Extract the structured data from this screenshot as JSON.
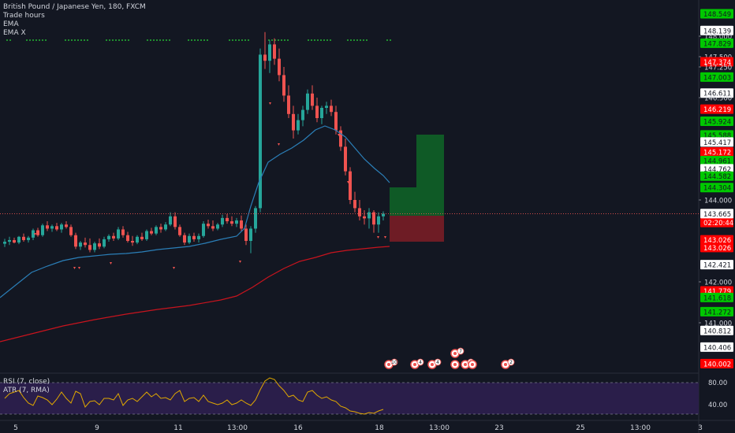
{
  "symbol": {
    "title": "British Pound / Japanese Yen, 180, FXCM",
    "studies": [
      "Trade hours",
      "EMA",
      "EMA X"
    ]
  },
  "indicators": {
    "rsi_label": "RSI (7, close)",
    "atr_label": "ATR (7, RMA)",
    "rsi_levels": [
      "80.00",
      "40.00"
    ]
  },
  "price_axis": {
    "ticks": [
      {
        "label": "148.549",
        "p": 148.549,
        "bg": "#00c800",
        "fg": "#131722"
      },
      {
        "label": "148.139",
        "p": 148.139,
        "bg": "#ffffff",
        "fg": "#131722"
      },
      {
        "label": "148.000",
        "p": 148.0,
        "bg": null,
        "fg": "#d1d4dc"
      },
      {
        "label": "147.829",
        "p": 147.829,
        "bg": "#00c800",
        "fg": "#131722"
      },
      {
        "label": "147.500",
        "p": 147.5,
        "bg": null,
        "fg": "#d1d4dc"
      },
      {
        "label": "147.374",
        "p": 147.374,
        "bg": "#ff0000",
        "fg": "#ffffff"
      },
      {
        "label": "147.250",
        "p": 147.25,
        "bg": null,
        "fg": "#d1d4dc"
      },
      {
        "label": "147.003",
        "p": 147.003,
        "bg": "#00c800",
        "fg": "#131722"
      },
      {
        "label": "146.611",
        "p": 146.611,
        "bg": "#ffffff",
        "fg": "#131722"
      },
      {
        "label": "146.500",
        "p": 146.5,
        "bg": null,
        "fg": "#d1d4dc"
      },
      {
        "label": "146.219",
        "p": 146.219,
        "bg": "#ff0000",
        "fg": "#ffffff"
      },
      {
        "label": "145.924",
        "p": 145.924,
        "bg": "#00c800",
        "fg": "#131722"
      },
      {
        "label": "145.588",
        "p": 145.588,
        "bg": "#00c800",
        "fg": "#131722"
      },
      {
        "label": "145.417",
        "p": 145.417,
        "bg": "#ffffff",
        "fg": "#131722"
      },
      {
        "label": "145.172",
        "p": 145.172,
        "bg": "#ff0000",
        "fg": "#ffffff"
      },
      {
        "label": "144.961",
        "p": 144.961,
        "bg": "#00c800",
        "fg": "#131722"
      },
      {
        "label": "144.762",
        "p": 144.762,
        "bg": "#ffffff",
        "fg": "#131722"
      },
      {
        "label": "144.582",
        "p": 144.582,
        "bg": "#00c800",
        "fg": "#131722"
      },
      {
        "label": "144.304",
        "p": 144.304,
        "bg": "#00c800",
        "fg": "#131722"
      },
      {
        "label": "144.000",
        "p": 144.0,
        "bg": null,
        "fg": "#d1d4dc"
      },
      {
        "label": "143.665",
        "p": 143.665,
        "bg": "#ffffff",
        "fg": "#131722"
      },
      {
        "label": "143.620",
        "p": 143.62,
        "bg": "#ff0000",
        "fg": "#ffffff"
      },
      {
        "label": "02:20:44",
        "p": 143.45,
        "bg": "#ff0000",
        "fg": "#ffffff"
      },
      {
        "label": "143.026",
        "p": 143.026,
        "bg": "#ff0000",
        "fg": "#ffffff"
      },
      {
        "label": "143.026",
        "p": 142.84,
        "bg": "#ff0000",
        "fg": "#ffffff"
      },
      {
        "label": "142.421",
        "p": 142.421,
        "bg": "#ffffff",
        "fg": "#131722"
      },
      {
        "label": "142.000",
        "p": 142.0,
        "bg": null,
        "fg": "#d1d4dc"
      },
      {
        "label": "141.779",
        "p": 141.779,
        "bg": "#ff0000",
        "fg": "#ffffff"
      },
      {
        "label": "141.618",
        "p": 141.618,
        "bg": "#00c800",
        "fg": "#131722"
      },
      {
        "label": "141.272",
        "p": 141.272,
        "bg": "#00c800",
        "fg": "#131722"
      },
      {
        "label": "141.000",
        "p": 141.0,
        "bg": null,
        "fg": "#d1d4dc"
      },
      {
        "label": "140.812",
        "p": 140.812,
        "bg": "#ffffff",
        "fg": "#131722"
      },
      {
        "label": "140.406",
        "p": 140.406,
        "bg": "#ffffff",
        "fg": "#131722"
      },
      {
        "label": "140.002",
        "p": 140.002,
        "bg": "#ff0000",
        "fg": "#ffffff"
      }
    ]
  },
  "last_price": {
    "label": "143.665",
    "value": 143.665
  },
  "time_axis": [
    "5",
    "9",
    "11",
    "13:00",
    "16",
    "18",
    "13:00",
    "23",
    "25",
    "13:00",
    "3"
  ],
  "events": [
    "10",
    "4",
    "4",
    "7",
    "8",
    "2"
  ],
  "colors": {
    "background": "#131722",
    "up": "#26a69a",
    "down": "#ef5350",
    "ema_fast": "#2b7fb8",
    "ema_slow": "#c8141e",
    "profit_zone": "#0f5a26",
    "loss_zone": "#6e1c25",
    "rsi_line": "#e0a800",
    "rsi_band": "#2a1e4a"
  }
}
